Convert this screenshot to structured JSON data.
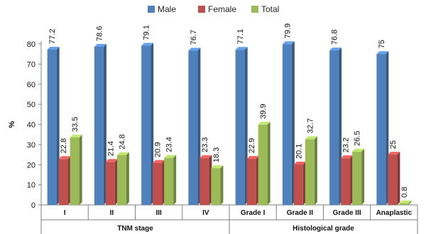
{
  "chart_data": {
    "type": "bar",
    "title": "",
    "ylabel": "%",
    "ylim": [
      0,
      80
    ],
    "yticks": [
      0,
      10,
      20,
      30,
      40,
      50,
      60,
      70,
      80
    ],
    "categories": [
      "I",
      "II",
      "III",
      "IV",
      "Grade I",
      "Grade II",
      "Grade III",
      "Anaplastic"
    ],
    "groups": [
      {
        "label": "TNM stage",
        "categories": [
          "I",
          "II",
          "III",
          "IV"
        ]
      },
      {
        "label": "Histological grade",
        "categories": [
          "Grade I",
          "Grade II",
          "Grade III",
          "Anaplastic"
        ]
      }
    ],
    "series": [
      {
        "name": "Male",
        "color": "#4f81bd",
        "values": [
          77.2,
          78.6,
          79.1,
          76.7,
          77.1,
          79.9,
          76.8,
          75
        ],
        "labels": [
          "77.2",
          "78.6",
          "79.1",
          "76.7",
          "77.1",
          "79.9",
          "76.8",
          "75"
        ]
      },
      {
        "name": "Female",
        "color": "#c0504d",
        "values": [
          22.8,
          21.4,
          20.9,
          23.3,
          22.9,
          20.1,
          23.2,
          25
        ],
        "labels": [
          "22.8",
          "21.4",
          "20.9",
          "23.3",
          "22.9",
          "20.1",
          "23.2",
          "25"
        ]
      },
      {
        "name": "Total",
        "color": "#9bbb59",
        "values": [
          33.5,
          24.8,
          23.4,
          18.3,
          39.9,
          32.7,
          26.5,
          0.8
        ],
        "labels": [
          "33.5",
          "24.8",
          "23.4",
          "18.3",
          "39.9",
          "32.7",
          "26.5",
          "0.8"
        ]
      }
    ],
    "legend_position": "top",
    "grid": false
  }
}
